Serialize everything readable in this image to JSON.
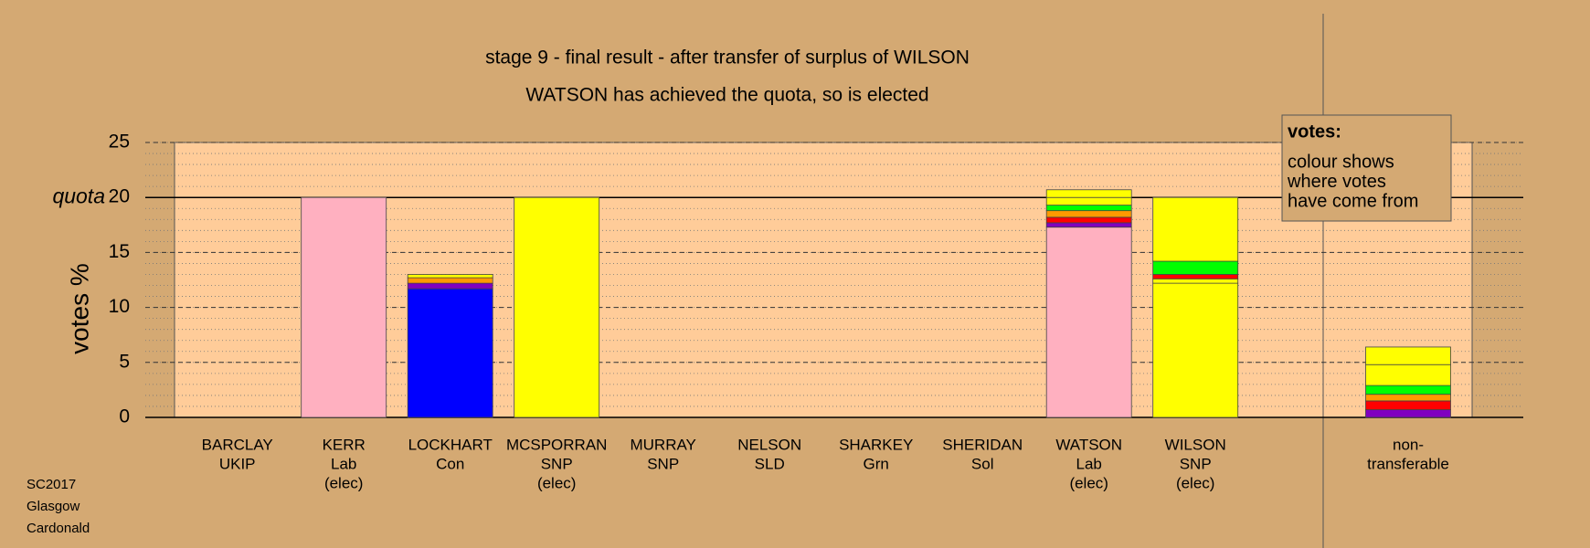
{
  "chart_data": {
    "type": "stacked-bar",
    "title": "stage 9 - final result - after transfer of surplus of WILSON",
    "subtitle": "WATSON has achieved the quota, so is elected",
    "y_label": "votes %",
    "ylim": [
      0,
      25
    ],
    "yticks": [
      0,
      5,
      10,
      15,
      20,
      25
    ],
    "quota": {
      "value": 20,
      "label": "quota"
    },
    "categories": [
      [
        "BARCLAY",
        "UKIP"
      ],
      [
        "KERR",
        "Lab",
        "(elec)"
      ],
      [
        "LOCKHART",
        "Con"
      ],
      [
        "MCSPORRAN",
        "SNP",
        "(elec)"
      ],
      [
        "MURRAY",
        "SNP"
      ],
      [
        "NELSON",
        "SLD"
      ],
      [
        "SHARKEY",
        "Grn"
      ],
      [
        "SHERIDAN",
        "Sol"
      ],
      [
        "WATSON",
        "Lab",
        "(elec)"
      ],
      [
        "WILSON",
        "SNP",
        "(elec)"
      ],
      [
        "non-",
        "transferable"
      ]
    ],
    "stacks": [
      [],
      [
        {
          "value": 20,
          "color": "#ffb0c0"
        }
      ],
      [
        {
          "value": 11.7,
          "color": "#0000ff"
        },
        {
          "value": 0.5,
          "color": "#8000c0"
        },
        {
          "value": 0.5,
          "color": "#ff9900"
        },
        {
          "value": 0.3,
          "color": "#ffff00"
        }
      ],
      [
        {
          "value": 20,
          "color": "#ffff00"
        }
      ],
      [],
      [],
      [],
      [],
      [
        {
          "value": 17.3,
          "color": "#ffb0c0"
        },
        {
          "value": 0.4,
          "color": "#8000c0"
        },
        {
          "value": 0.5,
          "color": "#ff0000"
        },
        {
          "value": 0.6,
          "color": "#ff9900"
        },
        {
          "value": 0.5,
          "color": "#00ff00"
        },
        {
          "value": 0.7,
          "color": "#ffff00"
        },
        {
          "value": 0.7,
          "color": "#ffff00"
        }
      ],
      [
        {
          "value": 12.2,
          "color": "#ffff00"
        },
        {
          "value": 0.4,
          "color": "#ffff00"
        },
        {
          "value": 0.4,
          "color": "#ff0000"
        },
        {
          "value": 1.2,
          "color": "#00ff00"
        },
        {
          "value": 5.8,
          "color": "#ffff00"
        }
      ],
      [
        {
          "value": 0.7,
          "color": "#8000c0"
        },
        {
          "value": 0.8,
          "color": "#ff0000"
        },
        {
          "value": 0.6,
          "color": "#ff9900"
        },
        {
          "value": 0.8,
          "color": "#00ff00"
        },
        {
          "value": 1.9,
          "color": "#ffff00"
        },
        {
          "value": 1.6,
          "color": "#ffff00"
        }
      ]
    ],
    "legend": {
      "heading": "votes:",
      "lines": [
        "colour shows",
        "where votes",
        "have come from"
      ]
    },
    "footer": [
      "SC2017",
      "Glasgow",
      "Cardonald"
    ]
  }
}
